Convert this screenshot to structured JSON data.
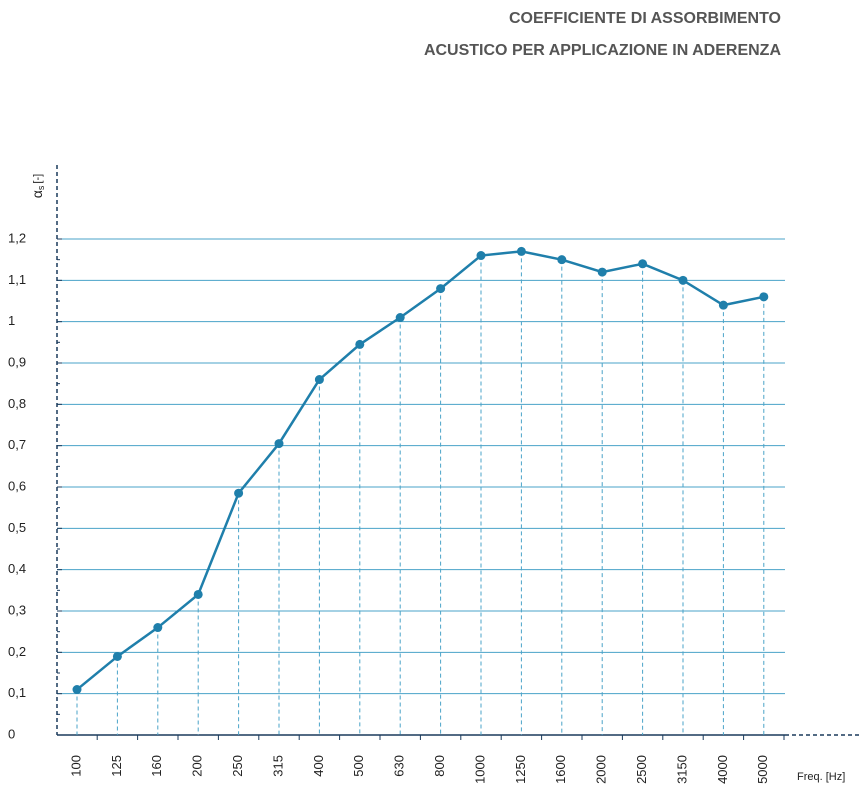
{
  "chart_data": {
    "type": "line",
    "title": [
      "COEFFICIENTE DI ASSORBIMENTO",
      "ACUSTICO PER APPLICAZIONE IN ADERENZA"
    ],
    "y_label": {
      "symbol": "α",
      "subscript": "s",
      "unit": "[-]"
    },
    "x_label": "Freq. [Hz]",
    "categories": [
      "100",
      "125",
      "160",
      "200",
      "250",
      "315",
      "400",
      "500",
      "630",
      "800",
      "1000",
      "1250",
      "1600",
      "2000",
      "2500",
      "3150",
      "4000",
      "5000"
    ],
    "series": [
      {
        "color": "#1f7fab",
        "values": [
          0.11,
          0.19,
          0.26,
          0.34,
          0.585,
          0.705,
          0.86,
          0.945,
          1.01,
          1.08,
          1.16,
          1.17,
          1.15,
          1.12,
          1.14,
          1.1,
          1.04,
          1.06
        ]
      }
    ],
    "ylim": [
      0,
      1.2
    ],
    "yticks": [
      0,
      {
        "value": 0.1,
        "label": "0,1"
      },
      {
        "value": 0.2,
        "label": "0,2"
      },
      {
        "value": 0.3,
        "label": "0,3"
      },
      {
        "value": 0.4,
        "label": "0,4"
      },
      {
        "value": 0.5,
        "label": "0,5"
      },
      {
        "value": 0.6,
        "label": "0,6"
      },
      {
        "value": 0.7,
        "label": "0,7"
      },
      {
        "value": 0.8,
        "label": "0,8"
      },
      {
        "value": 0.9,
        "label": "0,9"
      },
      1,
      {
        "value": 1.1,
        "label": "1,1"
      },
      {
        "value": 1.2,
        "label": "1,2"
      }
    ],
    "grid": true,
    "grid_color": "#4aa3c8"
  }
}
